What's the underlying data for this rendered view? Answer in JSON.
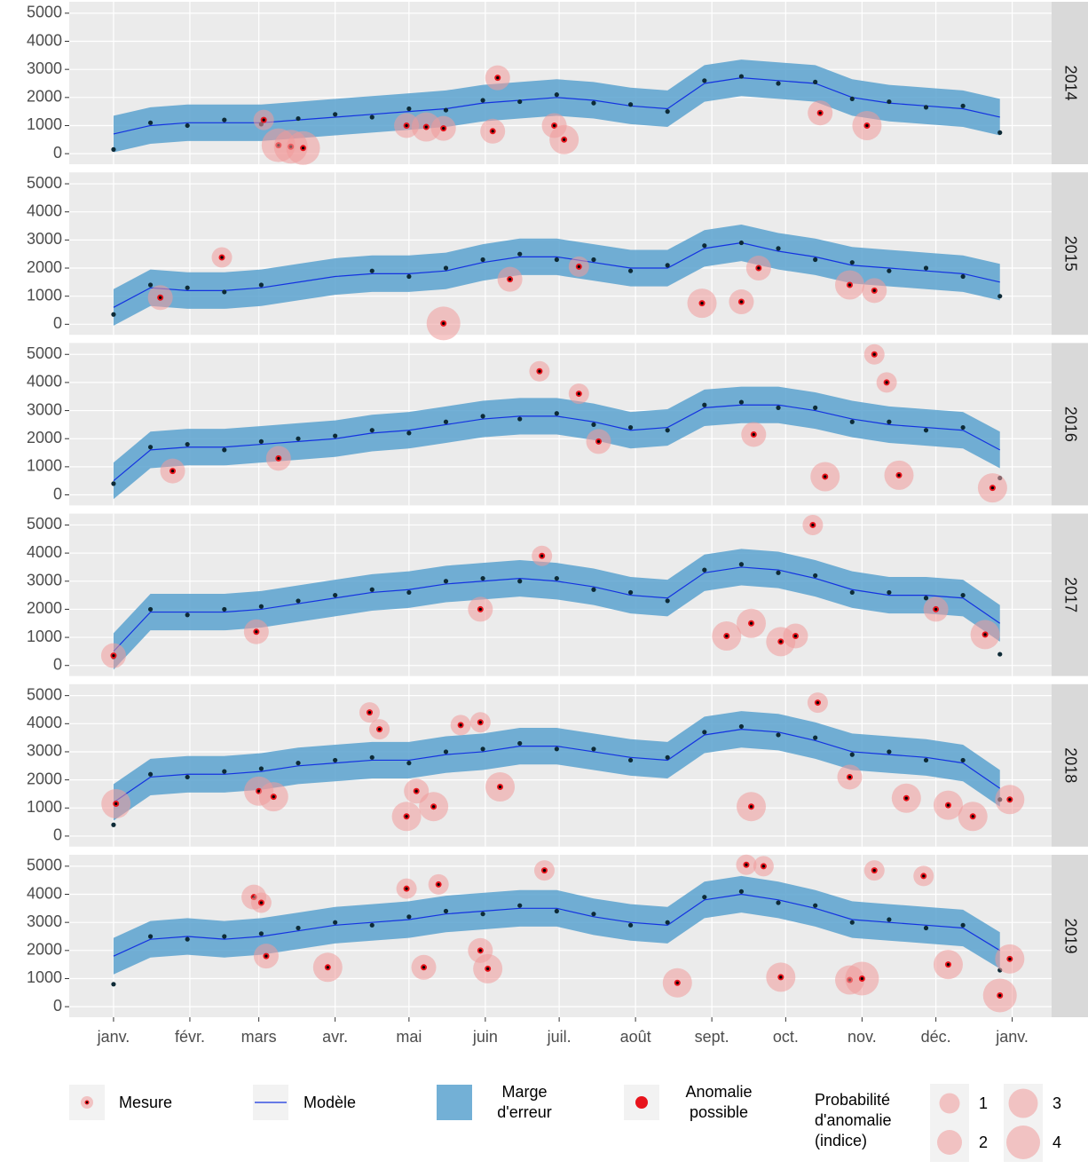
{
  "chart_data": {
    "type": "line",
    "x": [
      1,
      16,
      31,
      46,
      61,
      76,
      91,
      106,
      121,
      136,
      151,
      166,
      181,
      196,
      211,
      226,
      241,
      256,
      271,
      286,
      301,
      316,
      331,
      346,
      361
    ],
    "xlim": [
      -17,
      382
    ],
    "xticks": [
      {
        "value": 1,
        "label": "janv."
      },
      {
        "value": 32,
        "label": "févr."
      },
      {
        "value": 60,
        "label": "mars"
      },
      {
        "value": 91,
        "label": "avr."
      },
      {
        "value": 121,
        "label": "mai"
      },
      {
        "value": 152,
        "label": "juin"
      },
      {
        "value": 182,
        "label": "juil."
      },
      {
        "value": 213,
        "label": "août"
      },
      {
        "value": 244,
        "label": "sept."
      },
      {
        "value": 274,
        "label": "oct."
      },
      {
        "value": 305,
        "label": "nov."
      },
      {
        "value": 335,
        "label": "déc."
      },
      {
        "value": 366,
        "label": "janv."
      }
    ],
    "ylim": [
      -375,
      5406
    ],
    "yticks": [
      0,
      1000,
      2000,
      3000,
      4000,
      5000
    ],
    "grid": true,
    "colors": {
      "band": "#5aa2cf",
      "model": "#1433e0",
      "measure": "#0d2a36",
      "anomaly": "#e8141c",
      "halo": "#f19a9a"
    },
    "legend": {
      "measure": "Mesure",
      "model": "Modèle",
      "band": [
        "Marge",
        "d'erreur"
      ],
      "anomaly": [
        "Anomalie",
        "possible"
      ],
      "size_title": [
        "Probabilité",
        "d'anomalie",
        "(indice)"
      ],
      "sizes": [
        1,
        2,
        3,
        4
      ]
    },
    "facets": [
      {
        "label": "2014",
        "model": [
          700,
          1000,
          1100,
          1100,
          1100,
          1200,
          1300,
          1400,
          1500,
          1600,
          1800,
          1900,
          2000,
          1900,
          1700,
          1600,
          2500,
          2700,
          2600,
          2500,
          2000,
          1800,
          1700,
          1600,
          1300
        ],
        "lower": [
          50,
          350,
          450,
          450,
          450,
          550,
          650,
          750,
          850,
          950,
          1150,
          1250,
          1350,
          1250,
          1050,
          950,
          1850,
          2050,
          1950,
          1850,
          1350,
          1150,
          1050,
          950,
          650
        ],
        "upper": [
          1350,
          1650,
          1750,
          1750,
          1750,
          1850,
          1950,
          2050,
          2150,
          2250,
          2450,
          2550,
          2650,
          2550,
          2350,
          2250,
          3150,
          3350,
          3250,
          3150,
          2650,
          2450,
          2350,
          2250,
          1950
        ],
        "measures": [
          150,
          1100,
          1000,
          1200,
          1050,
          1250,
          1400,
          1300,
          1600,
          1550,
          1900,
          1850,
          2100,
          1800,
          1750,
          1500,
          2600,
          2750,
          2500,
          2550,
          1950,
          1850,
          1650,
          1700,
          750
        ],
        "anomalies": {
          "x": [
            68,
            73,
            78,
            62,
            120,
            128,
            135,
            157,
            180,
            184,
            155,
            288,
            307
          ],
          "values": [
            300,
            250,
            200,
            1200,
            1000,
            950,
            900,
            2700,
            1000,
            500,
            800,
            1450,
            1000
          ],
          "size": [
            4,
            4,
            4,
            1,
            2,
            3,
            2,
            2,
            2,
            3,
            2,
            2,
            3
          ]
        }
      },
      {
        "label": "2015",
        "model": [
          600,
          1300,
          1200,
          1200,
          1300,
          1500,
          1700,
          1800,
          1800,
          1900,
          2200,
          2400,
          2400,
          2200,
          2000,
          2000,
          2700,
          2900,
          2600,
          2400,
          2100,
          2000,
          1900,
          1800,
          1500
        ],
        "lower": [
          -50,
          650,
          550,
          550,
          650,
          850,
          1050,
          1150,
          1150,
          1250,
          1550,
          1750,
          1750,
          1550,
          1350,
          1350,
          2050,
          2250,
          1950,
          1750,
          1450,
          1350,
          1250,
          1150,
          850
        ],
        "upper": [
          1250,
          1950,
          1850,
          1850,
          1950,
          2150,
          2350,
          2450,
          2450,
          2550,
          2850,
          3050,
          3050,
          2850,
          2650,
          2650,
          3350,
          3550,
          3250,
          3050,
          2750,
          2650,
          2550,
          2450,
          2150
        ],
        "measures": [
          350,
          1400,
          1300,
          1150,
          1400,
          null,
          null,
          1900,
          1700,
          2000,
          2300,
          2500,
          2300,
          2300,
          1900,
          2100,
          2800,
          2900,
          2700,
          2300,
          2200,
          1900,
          2000,
          1700,
          1000
        ],
        "anomalies": {
          "x": [
            45,
            20,
            135,
            162,
            190,
            240,
            256,
            263,
            300,
            310
          ],
          "values": [
            2380,
            950,
            30,
            1600,
            2050,
            750,
            800,
            2000,
            1400,
            1200
          ],
          "size": [
            1,
            2,
            4,
            2,
            1,
            3,
            2,
            2,
            3,
            2
          ]
        }
      },
      {
        "label": "2016",
        "model": [
          500,
          1600,
          1700,
          1700,
          1800,
          1900,
          2000,
          2200,
          2300,
          2500,
          2700,
          2800,
          2800,
          2600,
          2300,
          2400,
          3100,
          3200,
          3200,
          3000,
          2700,
          2500,
          2400,
          2300,
          1600
        ],
        "lower": [
          -150,
          950,
          1050,
          1050,
          1150,
          1250,
          1350,
          1550,
          1650,
          1850,
          2050,
          2150,
          2150,
          1950,
          1650,
          1750,
          2450,
          2550,
          2550,
          2350,
          2050,
          1850,
          1750,
          1650,
          950
        ],
        "upper": [
          1150,
          2250,
          2350,
          2350,
          2450,
          2550,
          2650,
          2850,
          2950,
          3150,
          3350,
          3450,
          3450,
          3250,
          2950,
          3050,
          3750,
          3850,
          3850,
          3650,
          3350,
          3150,
          3050,
          2950,
          2250
        ],
        "measures": [
          400,
          1700,
          1800,
          1600,
          1900,
          2000,
          2100,
          2300,
          2200,
          2600,
          2800,
          2700,
          2900,
          2500,
          2400,
          2300,
          3200,
          3300,
          3100,
          3100,
          2600,
          2600,
          2300,
          2400,
          600
        ],
        "anomalies": {
          "x": [
            174,
            190,
            68,
            25,
            310,
            315,
            290,
            320,
            358,
            261,
            198
          ],
          "values": [
            4400,
            3600,
            1300,
            850,
            5000,
            4000,
            650,
            700,
            250,
            2150,
            1900
          ],
          "size": [
            1,
            1,
            2,
            2,
            1,
            1,
            3,
            3,
            3,
            2,
            2
          ]
        }
      },
      {
        "label": "2017",
        "model": [
          500,
          1900,
          1900,
          1900,
          2000,
          2200,
          2400,
          2600,
          2700,
          2900,
          3000,
          3100,
          3000,
          2800,
          2500,
          2400,
          3300,
          3500,
          3400,
          3100,
          2700,
          2500,
          2500,
          2400,
          1500
        ],
        "lower": [
          -150,
          1250,
          1250,
          1250,
          1350,
          1550,
          1750,
          1950,
          2050,
          2250,
          2350,
          2450,
          2350,
          2150,
          1850,
          1750,
          2650,
          2850,
          2750,
          2450,
          2050,
          1850,
          1850,
          1750,
          850
        ],
        "upper": [
          1150,
          2550,
          2550,
          2550,
          2650,
          2850,
          3050,
          3250,
          3350,
          3550,
          3650,
          3750,
          3650,
          3450,
          3150,
          3050,
          3950,
          4150,
          4050,
          3750,
          3350,
          3150,
          3150,
          3050,
          2150
        ],
        "measures": [
          300,
          2000,
          1800,
          2000,
          2100,
          2300,
          2500,
          2700,
          2600,
          3000,
          3100,
          3000,
          3100,
          2700,
          2600,
          2300,
          3400,
          3600,
          3300,
          3200,
          2600,
          2600,
          2400,
          2500,
          400
        ],
        "anomalies": {
          "x": [
            1,
            59,
            175,
            150,
            250,
            260,
            272,
            278,
            285,
            355,
            335
          ],
          "values": [
            350,
            1200,
            3900,
            2000,
            1050,
            1500,
            850,
            1050,
            5000,
            1100,
            2000
          ],
          "size": [
            2,
            2,
            1,
            2,
            3,
            3,
            3,
            2,
            1,
            3,
            2
          ]
        }
      },
      {
        "label": "2018",
        "model": [
          1200,
          2100,
          2200,
          2200,
          2300,
          2500,
          2600,
          2700,
          2700,
          2900,
          3000,
          3200,
          3200,
          3000,
          2800,
          2700,
          3600,
          3800,
          3700,
          3400,
          3000,
          2900,
          2800,
          2600,
          1700
        ],
        "lower": [
          550,
          1450,
          1550,
          1550,
          1650,
          1850,
          1950,
          2050,
          2050,
          2250,
          2350,
          2550,
          2550,
          2350,
          2150,
          2050,
          2950,
          3150,
          3050,
          2750,
          2350,
          2250,
          2150,
          1950,
          1050
        ],
        "upper": [
          1850,
          2750,
          2850,
          2850,
          2950,
          3150,
          3250,
          3350,
          3350,
          3550,
          3650,
          3850,
          3850,
          3650,
          3450,
          3350,
          4250,
          4450,
          4350,
          4050,
          3650,
          3550,
          3450,
          3250,
          2350
        ],
        "measures": [
          400,
          2200,
          2100,
          2300,
          2400,
          2600,
          2700,
          2800,
          2600,
          3000,
          3100,
          3300,
          3100,
          3100,
          2700,
          2800,
          3700,
          3900,
          3600,
          3500,
          2900,
          3000,
          2700,
          2700,
          1300
        ],
        "anomalies": {
          "x": [
            2,
            60,
            66,
            105,
            109,
            120,
            124,
            131,
            142,
            150,
            158,
            260,
            287,
            300,
            323,
            340,
            350,
            365
          ],
          "values": [
            1150,
            1600,
            1400,
            4400,
            3800,
            700,
            1600,
            1050,
            3950,
            4050,
            1750,
            1050,
            4750,
            2100,
            1350,
            1100,
            700,
            1300
          ],
          "size": [
            3,
            3,
            3,
            1,
            1,
            3,
            2,
            3,
            1,
            1,
            3,
            3,
            1,
            2,
            3,
            3,
            3,
            3
          ]
        }
      },
      {
        "label": "2019",
        "model": [
          1800,
          2400,
          2500,
          2400,
          2500,
          2700,
          2900,
          3000,
          3100,
          3300,
          3400,
          3500,
          3500,
          3200,
          3000,
          2900,
          3800,
          4000,
          3800,
          3500,
          3100,
          3000,
          2900,
          2800,
          2000
        ],
        "lower": [
          1150,
          1750,
          1850,
          1750,
          1850,
          2050,
          2250,
          2350,
          2450,
          2650,
          2750,
          2850,
          2850,
          2550,
          2350,
          2250,
          3150,
          3350,
          3150,
          2850,
          2450,
          2350,
          2250,
          2150,
          1350
        ],
        "upper": [
          2450,
          3050,
          3150,
          3050,
          3150,
          3350,
          3550,
          3650,
          3750,
          3950,
          4050,
          4150,
          4150,
          3850,
          3650,
          3550,
          4450,
          4650,
          4450,
          4150,
          3750,
          3650,
          3550,
          3450,
          2650
        ],
        "measures": [
          800,
          2500,
          2400,
          2500,
          2600,
          2800,
          3000,
          2900,
          3200,
          3400,
          3300,
          3600,
          3400,
          3300,
          2900,
          3000,
          3900,
          4100,
          3700,
          3600,
          3000,
          3100,
          2800,
          2900,
          1300
        ],
        "anomalies": {
          "x": [
            58,
            61,
            63,
            88,
            120,
            127,
            133,
            150,
            153,
            176,
            230,
            258,
            265,
            272,
            300,
            305,
            310,
            330,
            340,
            361,
            365
          ],
          "values": [
            3900,
            3700,
            1800,
            1400,
            4200,
            1400,
            4350,
            2000,
            1350,
            4850,
            850,
            5050,
            5000,
            1050,
            950,
            1000,
            4850,
            4650,
            1500,
            400,
            1700
          ],
          "size": [
            2,
            1,
            2,
            3,
            1,
            2,
            1,
            2,
            3,
            1,
            3,
            1,
            1,
            3,
            3,
            4,
            1,
            1,
            3,
            4,
            3
          ]
        }
      }
    ]
  }
}
